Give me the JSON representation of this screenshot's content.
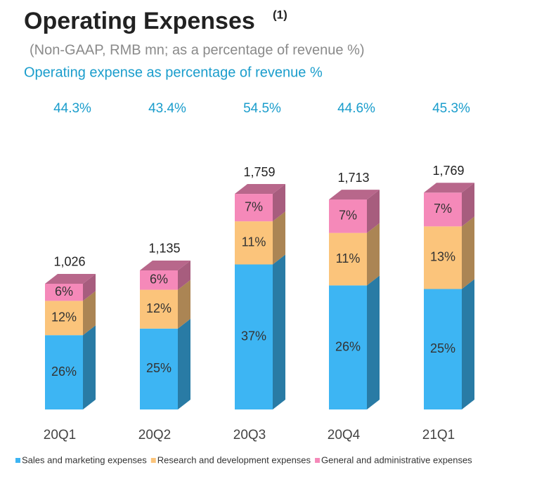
{
  "chart_data": {
    "type": "bar3d_stacked",
    "title": "Operating Expenses",
    "title_note": "(1)",
    "subtitle": "(Non-GAAP, RMB mn; as a percentage of revenue %)",
    "ratio": {
      "name": "Operating expense as percentage of revenue %",
      "values": [
        44.3,
        43.4,
        54.5,
        44.6,
        45.3
      ],
      "value_labels": [
        "44.3%",
        "43.4%",
        "54.5%",
        "44.6%",
        "45.3%"
      ]
    },
    "categories": [
      "20Q1",
      "20Q2",
      "20Q3",
      "20Q4",
      "21Q1"
    ],
    "totals": {
      "values": [
        1026,
        1135,
        1759,
        1713,
        1769
      ],
      "value_labels": [
        "1,026",
        "1,135",
        "1,759",
        "1,713",
        "1,769"
      ]
    },
    "series": [
      {
        "name": "Sales and marketing expenses",
        "color": "#3db5f3",
        "values": [
          26,
          25,
          37,
          26,
          25
        ],
        "value_labels": [
          "26%",
          "25%",
          "37%",
          "26%",
          "25%"
        ]
      },
      {
        "name": "Research and development expenses",
        "color": "#fbc47b",
        "values": [
          12,
          12,
          11,
          11,
          13
        ],
        "value_labels": [
          "12%",
          "12%",
          "11%",
          "11%",
          "13%"
        ]
      },
      {
        "name": "General and administrative expenses",
        "color": "#f589b9",
        "values": [
          6,
          6,
          7,
          7,
          7
        ],
        "value_labels": [
          "6%",
          "6%",
          "7%",
          "7%",
          "7%"
        ]
      }
    ]
  }
}
